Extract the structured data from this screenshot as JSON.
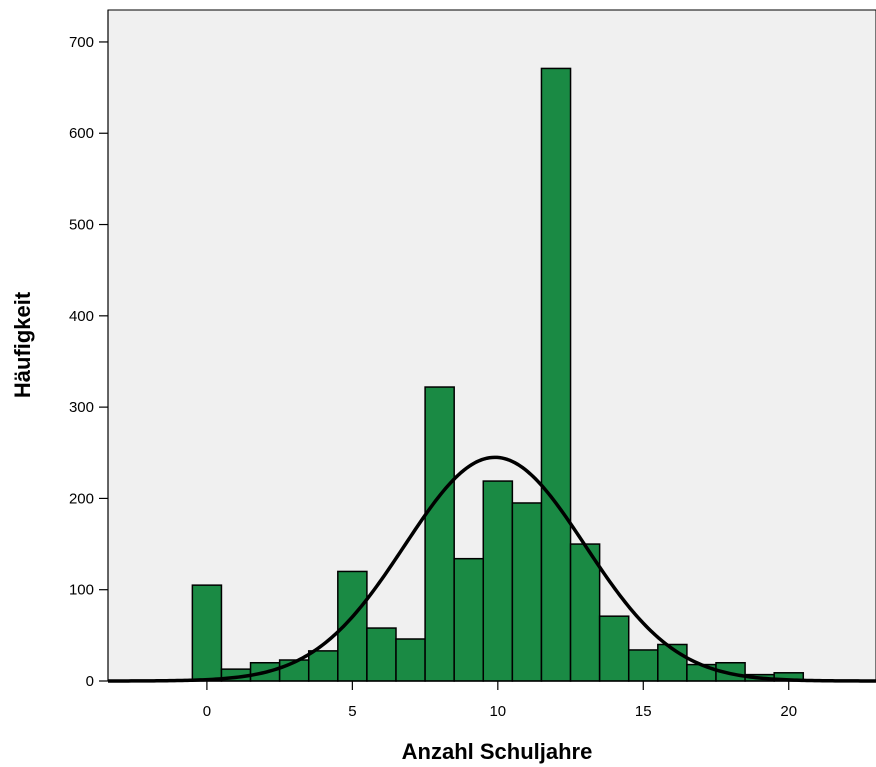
{
  "chart_data": {
    "type": "bar",
    "subtype": "histogram",
    "xlabel": "Anzahl Schuljahre",
    "ylabel": "Häufigkeit",
    "xlim": [
      -3.4,
      23
    ],
    "ylim": [
      0,
      735
    ],
    "x_ticks": [
      0,
      5,
      10,
      15,
      20
    ],
    "y_ticks": [
      0,
      100,
      200,
      300,
      400,
      500,
      600,
      700
    ],
    "bin_width": 1,
    "bins": [
      {
        "x": 0,
        "value": 105
      },
      {
        "x": 1,
        "value": 13
      },
      {
        "x": 2,
        "value": 20
      },
      {
        "x": 3,
        "value": 23
      },
      {
        "x": 4,
        "value": 33
      },
      {
        "x": 5,
        "value": 120
      },
      {
        "x": 6,
        "value": 58
      },
      {
        "x": 7,
        "value": 46
      },
      {
        "x": 8,
        "value": 322
      },
      {
        "x": 9,
        "value": 134
      },
      {
        "x": 10,
        "value": 219
      },
      {
        "x": 11,
        "value": 195
      },
      {
        "x": 12,
        "value": 671
      },
      {
        "x": 13,
        "value": 150
      },
      {
        "x": 14,
        "value": 71
      },
      {
        "x": 15,
        "value": 34
      },
      {
        "x": 16,
        "value": 40
      },
      {
        "x": 17,
        "value": 18
      },
      {
        "x": 18,
        "value": 20
      },
      {
        "x": 19,
        "value": 7
      },
      {
        "x": 20,
        "value": 9
      }
    ],
    "normal_curve": {
      "mean": 9.9,
      "sd": 3.1,
      "peak": 245
    },
    "colors": {
      "bar_fill": "#1a8a44",
      "bar_stroke": "#000000",
      "plot_background": "#f0f0f0",
      "curve": "#000000"
    },
    "grid": false,
    "legend": "none"
  }
}
